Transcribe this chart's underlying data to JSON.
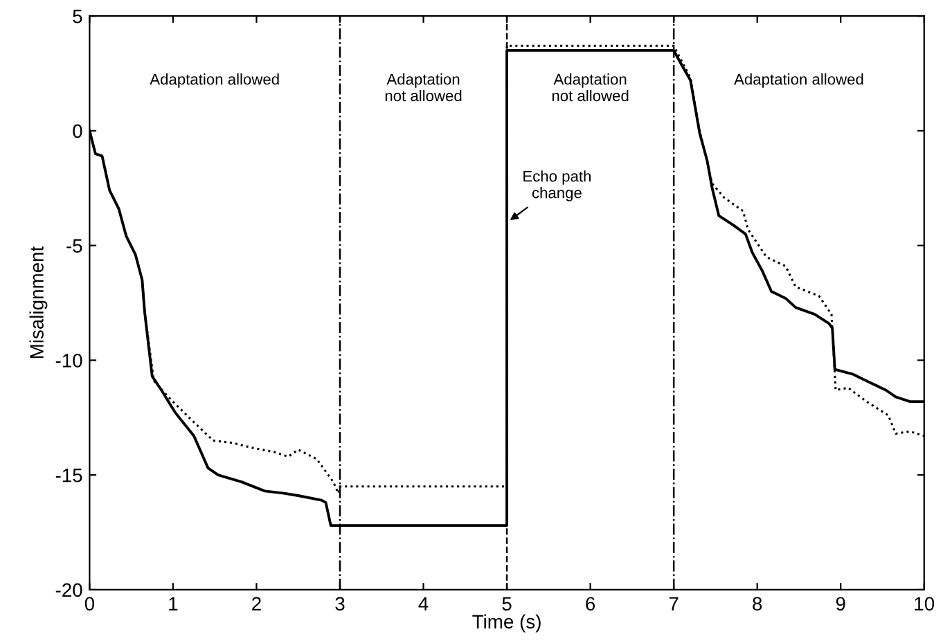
{
  "chart_data": {
    "type": "line",
    "xlabel": "Time (s)",
    "ylabel": "Misalignment",
    "xlim": [
      0,
      10
    ],
    "xticks": [
      0,
      1,
      2,
      3,
      4,
      5,
      6,
      7,
      8,
      9,
      10
    ],
    "ylim": [
      -20,
      5
    ],
    "yticks": [
      -20,
      -15,
      -10,
      -5,
      0,
      5
    ],
    "grid": false,
    "series": [
      {
        "color": "#000000",
        "line_style": "solid",
        "x": [
          0,
          0.07,
          0.15,
          0.24,
          0.35,
          0.44,
          0.55,
          0.63,
          0.66,
          0.75,
          0.86,
          1.03,
          1.25,
          1.42,
          1.54,
          1.82,
          2.1,
          2.33,
          2.5,
          2.78,
          2.83,
          2.89,
          3,
          5,
          5,
          7,
          7.09,
          7.2,
          7.31,
          7.4,
          7.46,
          7.54,
          7.71,
          7.86,
          7.94,
          8.06,
          8.17,
          8.34,
          8.46,
          8.69,
          8.86,
          8.9,
          8.93,
          9.14,
          9.31,
          9.54,
          9.66,
          9.83,
          10
        ],
        "values": [
          0,
          -1.0,
          -1.1,
          -2.6,
          -3.4,
          -4.6,
          -5.4,
          -6.5,
          -7.9,
          -10.7,
          -11.3,
          -12.3,
          -13.3,
          -14.7,
          -15.0,
          -15.3,
          -15.7,
          -15.8,
          -15.9,
          -16.1,
          -16.2,
          -17.2,
          -17.2,
          -17.2,
          3.5,
          3.5,
          2.9,
          2.2,
          -0.1,
          -1.3,
          -2.5,
          -3.7,
          -4.1,
          -4.5,
          -5.3,
          -6.1,
          -7.0,
          -7.3,
          -7.7,
          -8.0,
          -8.4,
          -8.6,
          -10.4,
          -10.6,
          -10.9,
          -11.3,
          -11.6,
          -11.8,
          -11.8
        ]
      },
      {
        "color": "#000000",
        "line_style": "dotted",
        "x": [
          0,
          0.07,
          0.15,
          0.24,
          0.35,
          0.44,
          0.55,
          0.63,
          0.66,
          0.77,
          0.97,
          1.25,
          1.48,
          1.71,
          1.93,
          2.21,
          2.38,
          2.5,
          2.72,
          2.84,
          2.92,
          2.98,
          3.0,
          5,
          5,
          7,
          7.2,
          7.31,
          7.46,
          7.6,
          7.83,
          7.89,
          8.11,
          8.34,
          8.46,
          8.74,
          8.89,
          8.94,
          9.09,
          9.31,
          9.57,
          9.66,
          9.83,
          10
        ],
        "values": [
          0,
          -1.0,
          -1.1,
          -2.6,
          -3.4,
          -4.6,
          -5.4,
          -6.5,
          -7.9,
          -10.9,
          -11.7,
          -12.7,
          -13.5,
          -13.6,
          -13.8,
          -14.0,
          -14.2,
          -13.9,
          -14.3,
          -14.9,
          -15.3,
          -15.8,
          -15.5,
          -15.5,
          3.7,
          3.7,
          2.3,
          0.0,
          -2.3,
          -2.9,
          -3.5,
          -4.3,
          -5.5,
          -5.9,
          -6.8,
          -7.2,
          -8.0,
          -11.3,
          -11.2,
          -11.8,
          -12.4,
          -13.2,
          -13.1,
          -13.3
        ]
      }
    ],
    "ref_lines": [
      {
        "axis": "x",
        "value": 3,
        "color": "#000000",
        "line_style": "dashdot"
      },
      {
        "axis": "x",
        "value": 5,
        "color": "#000000",
        "line_style": "dashed"
      },
      {
        "axis": "x",
        "value": 7,
        "color": "#000000",
        "line_style": "dashdot"
      }
    ],
    "annotations": [
      "Adaptation allowed",
      "Adaptation\nnot allowed",
      "Adaptation\nnot allowed",
      "Adaptation allowed",
      {
        "text": "Echo path\nchange",
        "x": 5,
        "y": -4.0
      }
    ]
  }
}
